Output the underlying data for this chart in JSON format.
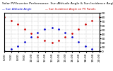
{
  "title": "Solar PV/Inverter Performance  Sun Altitude Angle & Sun Incidence Angle on PV Panels",
  "blue_label": "Sun Altitude Angle",
  "red_label": "Sun Incidence Angle on PV Panels",
  "blue_color": "#0000cc",
  "red_color": "#cc0000",
  "background_color": "#ffffff",
  "ylim": [
    0,
    90
  ],
  "xlim": [
    0,
    1
  ],
  "yticks": [
    0,
    10,
    20,
    30,
    40,
    50,
    60,
    70,
    80,
    90
  ],
  "title_fontsize": 3.2,
  "tick_fontsize": 3.2,
  "blue_x": [
    0.0,
    0.07,
    0.14,
    0.21,
    0.28,
    0.35,
    0.42,
    0.5,
    0.57,
    0.64,
    0.71,
    0.78,
    0.85,
    0.92,
    1.0
  ],
  "blue_y": [
    0,
    5,
    12,
    22,
    33,
    44,
    52,
    55,
    52,
    44,
    33,
    22,
    12,
    5,
    0
  ],
  "red_x": [
    0.0,
    0.07,
    0.14,
    0.21,
    0.28,
    0.35,
    0.42,
    0.5,
    0.57,
    0.64,
    0.71,
    0.78,
    0.85,
    0.92,
    1.0
  ],
  "red_y": [
    80,
    72,
    63,
    52,
    42,
    33,
    25,
    20,
    25,
    33,
    42,
    52,
    63,
    72,
    80
  ],
  "xtick_labels": [
    "6:00",
    "7:00",
    "8:00",
    "9:00",
    "10:00",
    "11:00",
    "12:00",
    "13:00",
    "14:00",
    "15:00",
    "16:00",
    "17:00",
    "18:00",
    "19:00",
    "20:00"
  ]
}
